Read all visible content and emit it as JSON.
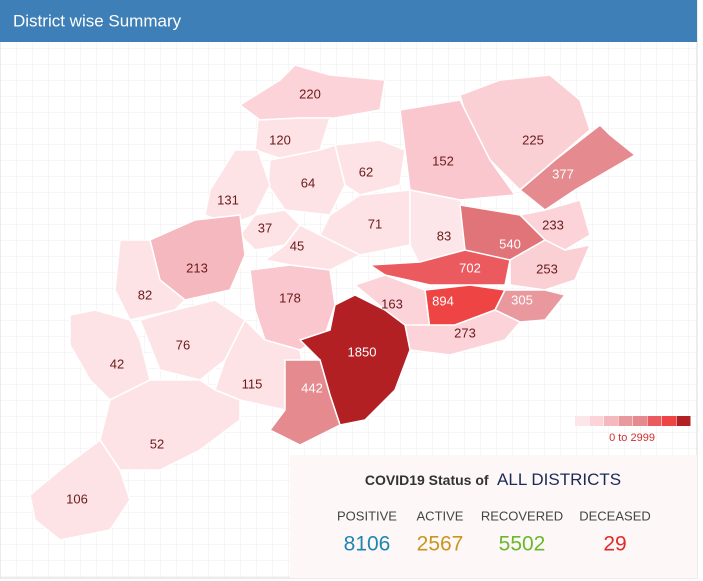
{
  "header": {
    "title": "District wise Summary"
  },
  "map": {
    "districts": [
      {
        "value": 220,
        "color": "#fbd3d8"
      },
      {
        "value": 120,
        "color": "#fde3e6"
      },
      {
        "value": 225,
        "color": "#fbd0d5"
      },
      {
        "value": 152,
        "color": "#f9c7cd"
      },
      {
        "value": 64,
        "color": "#fde3e6"
      },
      {
        "value": 62,
        "color": "#fde3e6"
      },
      {
        "value": 377,
        "color": "#e58a8f"
      },
      {
        "value": 131,
        "color": "#fde3e6"
      },
      {
        "value": 37,
        "color": "#fde3e6"
      },
      {
        "value": 71,
        "color": "#fde3e6"
      },
      {
        "value": 83,
        "color": "#fde6e9"
      },
      {
        "value": 233,
        "color": "#fbd3d8"
      },
      {
        "value": 540,
        "color": "#e07479"
      },
      {
        "value": 45,
        "color": "#fde3e6"
      },
      {
        "value": 213,
        "color": "#f6b8bf"
      },
      {
        "value": 702,
        "color": "#ea5a5e"
      },
      {
        "value": 253,
        "color": "#fbd0d5"
      },
      {
        "value": 82,
        "color": "#fde3e6"
      },
      {
        "value": 178,
        "color": "#f9c7cd"
      },
      {
        "value": 894,
        "color": "#ef4444"
      },
      {
        "value": 163,
        "color": "#fbd3d8"
      },
      {
        "value": 305,
        "color": "#e9999e"
      },
      {
        "value": 273,
        "color": "#fbd3d8"
      },
      {
        "value": 76,
        "color": "#fde3e6"
      },
      {
        "value": 1850,
        "color": "#b22024"
      },
      {
        "value": 42,
        "color": "#fde3e6"
      },
      {
        "value": 115,
        "color": "#fde3e6"
      },
      {
        "value": 442,
        "color": "#e58a8f"
      },
      {
        "value": 52,
        "color": "#fde3e6"
      },
      {
        "value": 106,
        "color": "#fde3e6"
      }
    ],
    "legend_label": "0 to 2999"
  },
  "status": {
    "title_prefix": "COVID19 Status of",
    "title_scope": "ALL DISTRICTS",
    "stats": [
      {
        "label": "POSITIVE",
        "value": 8106,
        "color": "#1f86b0"
      },
      {
        "label": "ACTIVE",
        "value": 2567,
        "color": "#c8961e"
      },
      {
        "label": "RECOVERED",
        "value": 5502,
        "color": "#6cb82c"
      },
      {
        "label": "DECEASED",
        "value": 29,
        "color": "#e02b2b"
      }
    ]
  }
}
